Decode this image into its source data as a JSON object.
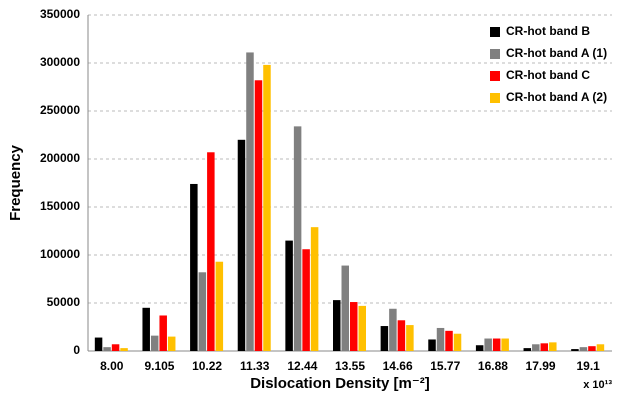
{
  "chart_data": {
    "type": "bar",
    "x_label": "Dislocation Density [m⁻²]",
    "y_label": "Frequency",
    "x_annotation": "x 10¹³",
    "categories": [
      "8.00",
      "9.105",
      "10.22",
      "11.33",
      "12.44",
      "13.55",
      "14.66",
      "15.77",
      "16.88",
      "17.99",
      "19.1"
    ],
    "series": [
      {
        "name": "CR-hot band B",
        "color": "#000000",
        "values": [
          14000,
          45000,
          174000,
          220000,
          115000,
          53000,
          26000,
          12000,
          6000,
          3000,
          2000
        ]
      },
      {
        "name": "CR-hot band A (1)",
        "color": "#808080",
        "values": [
          4000,
          16000,
          82000,
          311000,
          234000,
          89000,
          44000,
          24000,
          13000,
          7000,
          4000
        ]
      },
      {
        "name": "CR-hot band C",
        "color": "#ff0000",
        "values": [
          7000,
          37000,
          207000,
          282000,
          106000,
          51000,
          32000,
          21000,
          13000,
          8000,
          5000
        ]
      },
      {
        "name": "CR-hot band A (2)",
        "color": "#ffc000",
        "values": [
          3000,
          15000,
          93000,
          298000,
          129000,
          47000,
          27000,
          18000,
          13000,
          9000,
          7000
        ]
      }
    ],
    "ylim": [
      0,
      350000
    ],
    "yticks": [
      0,
      50000,
      100000,
      150000,
      200000,
      250000,
      300000,
      350000
    ],
    "grid": true,
    "legend": "top-right"
  }
}
